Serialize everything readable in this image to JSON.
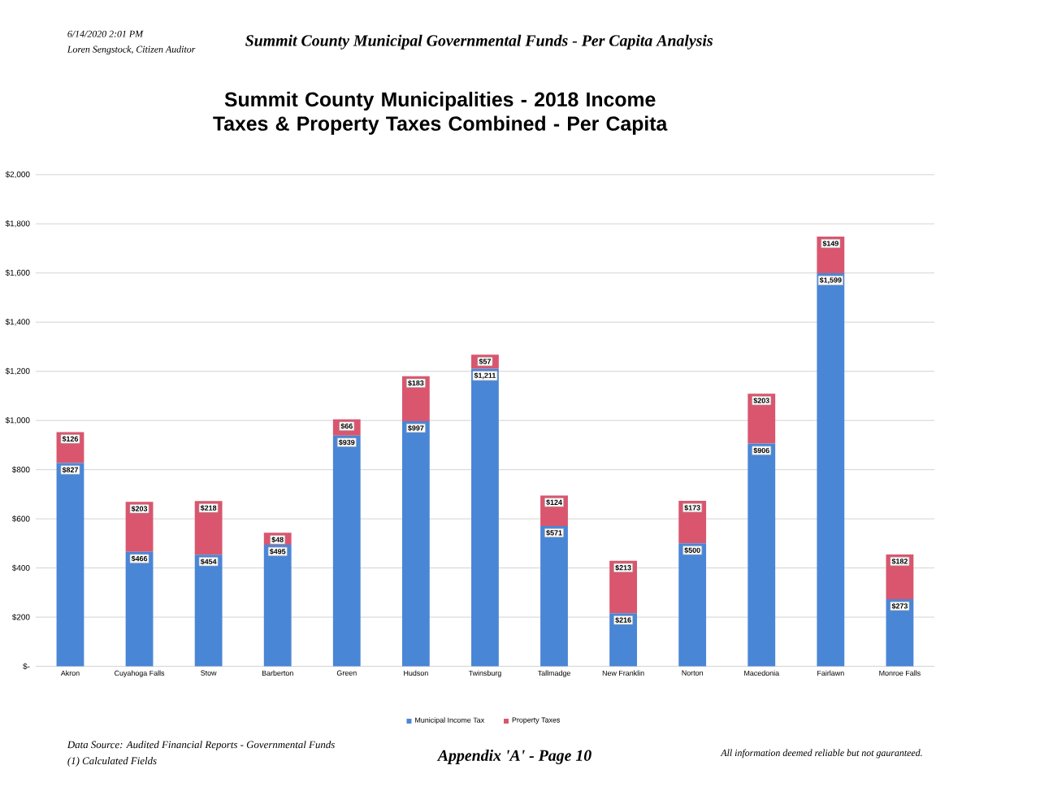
{
  "chart_data": {
    "type": "bar",
    "stacked": true,
    "title": "Summit County Municipalities -  2018 Income Taxes & Property Taxes Combined - Per Capita",
    "categories": [
      "Akron",
      "Cuyahoga Falls",
      "Stow",
      "Barberton",
      "Green",
      "Hudson",
      "Twinsburg",
      "Tallmadge",
      "New Franklin",
      "Norton",
      "Macedonia",
      "Fairlawn",
      "Monroe Falls"
    ],
    "series": [
      {
        "name": "Municipal Income Tax",
        "color": "#4a86d6",
        "values": [
          827,
          466,
          454,
          495,
          939,
          997,
          1211,
          571,
          216,
          500,
          906,
          1599,
          273
        ],
        "value_labels": [
          "$827",
          "$466",
          "$454",
          "$495",
          "$939",
          "$997",
          "$1,211",
          "$571",
          "$216",
          "$500",
          "$906",
          "$1,599",
          "$273"
        ]
      },
      {
        "name": "Property Taxes",
        "color": "#d9566e",
        "values": [
          126,
          203,
          218,
          48,
          66,
          183,
          57,
          124,
          213,
          173,
          203,
          149,
          182
        ],
        "value_labels": [
          "$126",
          "$203",
          "$218",
          "$48",
          "$66",
          "$183",
          "$57",
          "$124",
          "$213",
          "$173",
          "$203",
          "$149",
          "$182"
        ]
      }
    ],
    "ylim": [
      0,
      2000
    ],
    "yticks": [
      {
        "value": 0,
        "label": "$-"
      },
      {
        "value": 200,
        "label": "$200"
      },
      {
        "value": 400,
        "label": "$400"
      },
      {
        "value": 600,
        "label": "$600"
      },
      {
        "value": 800,
        "label": "$800"
      },
      {
        "value": 1000,
        "label": "$1,000"
      },
      {
        "value": 1200,
        "label": "$1,200"
      },
      {
        "value": 1400,
        "label": "$1,400"
      },
      {
        "value": 1600,
        "label": "$1,600"
      },
      {
        "value": 1800,
        "label": "$1,800"
      },
      {
        "value": 2000,
        "label": "$2,000"
      }
    ],
    "grid": "y",
    "legend": "bottom",
    "annotations": [
      "6/14/2020  2:01 PM",
      "Loren Sengstock, Citizen Auditor",
      "Summit County Municipal Governmental Funds - Per Capita Analysis",
      "Data Source:  Audited Financial Reports -  Governmental Funds",
      "(1)  Calculated Fields",
      "Appendix 'A' - Page 10",
      "All information deemed reliable but not gauranteed."
    ]
  }
}
